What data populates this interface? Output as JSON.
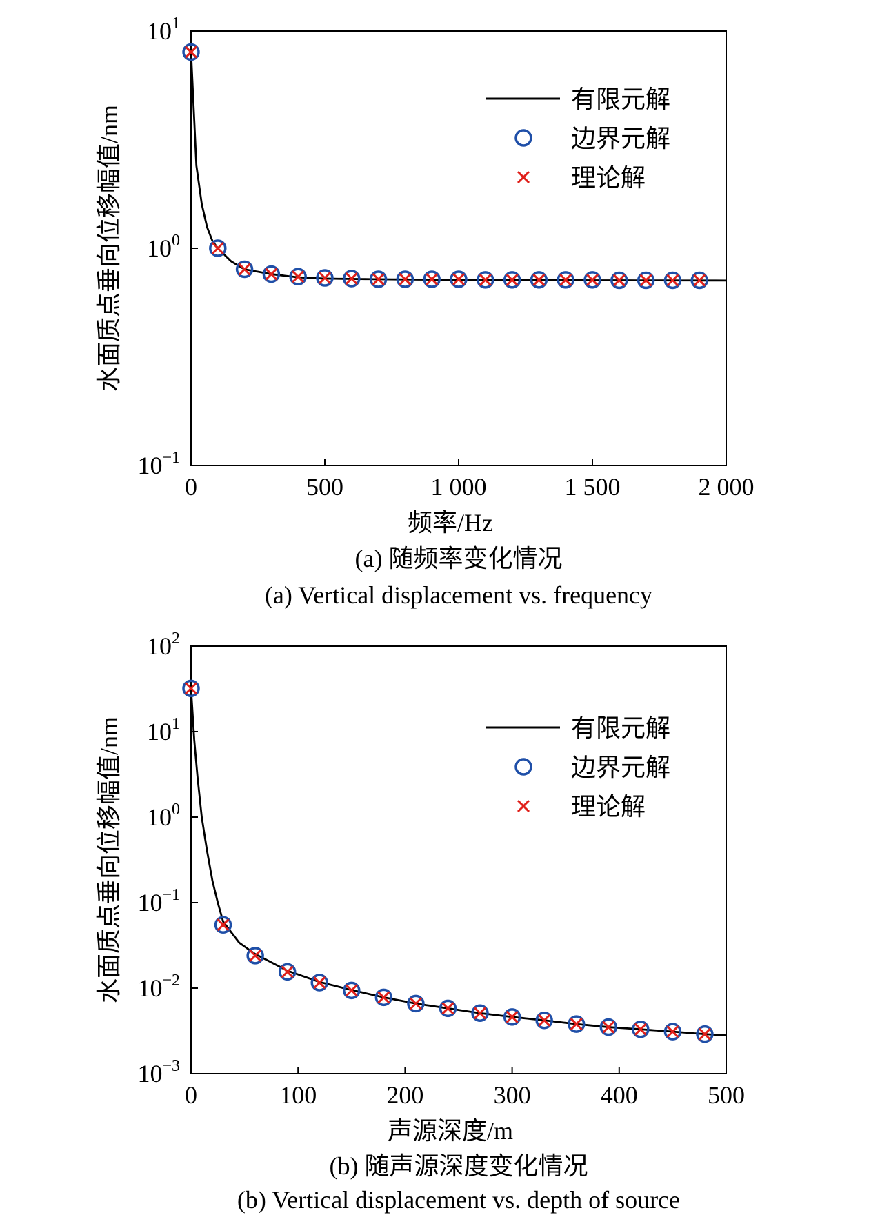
{
  "chart_data": [
    {
      "type": "line",
      "xlabel": "频率/Hz",
      "ylabel": "水面质点垂向位移幅值/nm",
      "caption_cn": "(a) 随频率变化情况",
      "caption_en": "(a) Vertical displacement vs. frequency",
      "xlim": [
        0,
        2000
      ],
      "ylim": [
        0.1,
        10
      ],
      "yscale": "log",
      "x_ticks": [
        0,
        500,
        1000,
        1500,
        2000
      ],
      "x_tick_labels": [
        "0",
        "500",
        "1 000",
        "1 500",
        "2 000"
      ],
      "y_ticks": [
        {
          "base": "10",
          "exp": "1",
          "value": 10
        },
        {
          "base": "10",
          "exp": "0",
          "value": 1
        },
        {
          "base": "10",
          "exp": "−1",
          "value": 0.1
        }
      ],
      "legend_position": "top-right",
      "legend": [
        "有限元解",
        "边界元解",
        "理论解"
      ],
      "series": [
        {
          "name": "有限元解",
          "style": "line",
          "color": "#000000",
          "x": [
            0,
            20,
            40,
            60,
            80,
            100,
            150,
            200,
            300,
            400,
            500,
            700,
            1000,
            1500,
            2000
          ],
          "y": [
            8.0,
            2.4,
            1.6,
            1.25,
            1.08,
            1.0,
            0.87,
            0.8,
            0.76,
            0.735,
            0.725,
            0.72,
            0.715,
            0.712,
            0.71
          ]
        },
        {
          "name": "边界元解",
          "style": "circle",
          "color": "#1f4fa8",
          "x": [
            0,
            100,
            200,
            300,
            400,
            500,
            600,
            700,
            800,
            900,
            1000,
            1100,
            1200,
            1300,
            1400,
            1500,
            1600,
            1700,
            1800,
            1900
          ],
          "y": [
            8.0,
            1.0,
            0.8,
            0.76,
            0.74,
            0.73,
            0.725,
            0.72,
            0.72,
            0.72,
            0.72,
            0.715,
            0.715,
            0.715,
            0.715,
            0.715,
            0.712,
            0.712,
            0.712,
            0.712
          ]
        },
        {
          "name": "理论解",
          "style": "cross",
          "color": "#e0201a",
          "x": [
            0,
            100,
            200,
            300,
            400,
            500,
            600,
            700,
            800,
            900,
            1000,
            1100,
            1200,
            1300,
            1400,
            1500,
            1600,
            1700,
            1800,
            1900
          ],
          "y": [
            8.0,
            1.0,
            0.8,
            0.76,
            0.74,
            0.73,
            0.725,
            0.72,
            0.72,
            0.72,
            0.72,
            0.715,
            0.715,
            0.715,
            0.715,
            0.715,
            0.712,
            0.712,
            0.712,
            0.712
          ]
        }
      ]
    },
    {
      "type": "line",
      "xlabel": "声源深度/m",
      "ylabel": "水面质点垂向位移幅值/nm",
      "caption_cn": "(b) 随声源深度变化情况",
      "caption_en": "(b) Vertical displacement vs. depth of source",
      "xlim": [
        0,
        500
      ],
      "ylim": [
        0.001,
        100
      ],
      "yscale": "log",
      "x_ticks": [
        0,
        100,
        200,
        300,
        400,
        500
      ],
      "x_tick_labels": [
        "0",
        "100",
        "200",
        "300",
        "400",
        "500"
      ],
      "y_ticks": [
        {
          "base": "10",
          "exp": "2",
          "value": 100
        },
        {
          "base": "10",
          "exp": "1",
          "value": 10
        },
        {
          "base": "10",
          "exp": "0",
          "value": 1
        },
        {
          "base": "10",
          "exp": "−1",
          "value": 0.1
        },
        {
          "base": "10",
          "exp": "−2",
          "value": 0.01
        },
        {
          "base": "10",
          "exp": "−3",
          "value": 0.001
        }
      ],
      "legend_position": "top-right",
      "legend": [
        "有限元解",
        "边界元解",
        "理论解"
      ],
      "series": [
        {
          "name": "有限元解",
          "style": "line",
          "color": "#000000",
          "x": [
            0,
            3,
            6,
            10,
            15,
            20,
            25,
            30,
            45,
            60,
            90,
            120,
            150,
            180,
            210,
            240,
            270,
            300,
            330,
            360,
            390,
            420,
            450,
            480,
            500
          ],
          "y": [
            32,
            8,
            3,
            1,
            0.4,
            0.18,
            0.1,
            0.06,
            0.034,
            0.025,
            0.016,
            0.0118,
            0.0095,
            0.0078,
            0.0066,
            0.0058,
            0.0051,
            0.0046,
            0.0042,
            0.0038,
            0.0035,
            0.0033,
            0.0031,
            0.0029,
            0.0028
          ]
        },
        {
          "name": "边界元解",
          "style": "circle",
          "color": "#1f4fa8",
          "x": [
            0,
            30,
            60,
            90,
            120,
            150,
            180,
            210,
            240,
            270,
            300,
            330,
            360,
            390,
            420,
            450,
            480
          ],
          "y": [
            32,
            0.055,
            0.024,
            0.0155,
            0.0116,
            0.0094,
            0.0078,
            0.0066,
            0.0058,
            0.0051,
            0.0046,
            0.0042,
            0.0038,
            0.0035,
            0.0033,
            0.0031,
            0.0029
          ]
        },
        {
          "name": "理论解",
          "style": "cross",
          "color": "#e0201a",
          "x": [
            0,
            30,
            60,
            90,
            120,
            150,
            180,
            210,
            240,
            270,
            300,
            330,
            360,
            390,
            420,
            450,
            480
          ],
          "y": [
            32,
            0.055,
            0.024,
            0.0155,
            0.0116,
            0.0094,
            0.0078,
            0.0066,
            0.0058,
            0.0051,
            0.0046,
            0.0042,
            0.0038,
            0.0035,
            0.0033,
            0.0031,
            0.0029
          ]
        }
      ]
    }
  ]
}
